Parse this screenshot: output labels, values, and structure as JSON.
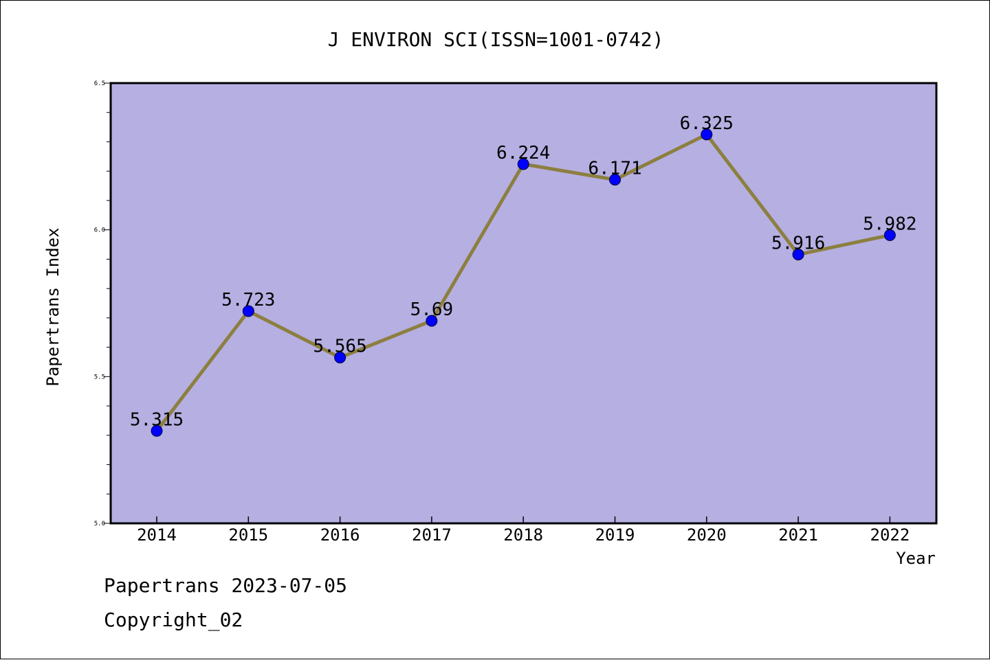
{
  "chart_data": {
    "type": "line",
    "title": "J ENVIRON SCI(ISSN=1001-0742)",
    "xlabel": "Year",
    "ylabel": "Papertrans Index",
    "categories": [
      "2014",
      "2015",
      "2016",
      "2017",
      "2018",
      "2019",
      "2020",
      "2021",
      "2022"
    ],
    "series": [
      {
        "values": [
          5.315,
          5.723,
          5.565,
          5.69,
          6.224,
          6.171,
          6.325,
          5.916,
          5.982
        ]
      }
    ],
    "data_labels": [
      "5.315",
      "5.723",
      "5.565",
      "5.69",
      "6.224",
      "6.171",
      "6.325",
      "5.916",
      "5.982"
    ],
    "ylim": [
      5.0,
      6.5
    ],
    "yticks": [
      5.0,
      5.5,
      6.0,
      6.5
    ],
    "ytick_labels": [
      "5.0",
      "5.5",
      "6.0",
      "6.5"
    ],
    "yminor_step": 0.1,
    "grid": false,
    "legend": "none",
    "colors": {
      "plot_background": "#b5afe2",
      "line": "#8c7f3f",
      "marker": "#0000ff"
    }
  },
  "footer": {
    "date_line": "Papertrans 2023-07-05",
    "copyright_line": "Copyright_02"
  }
}
